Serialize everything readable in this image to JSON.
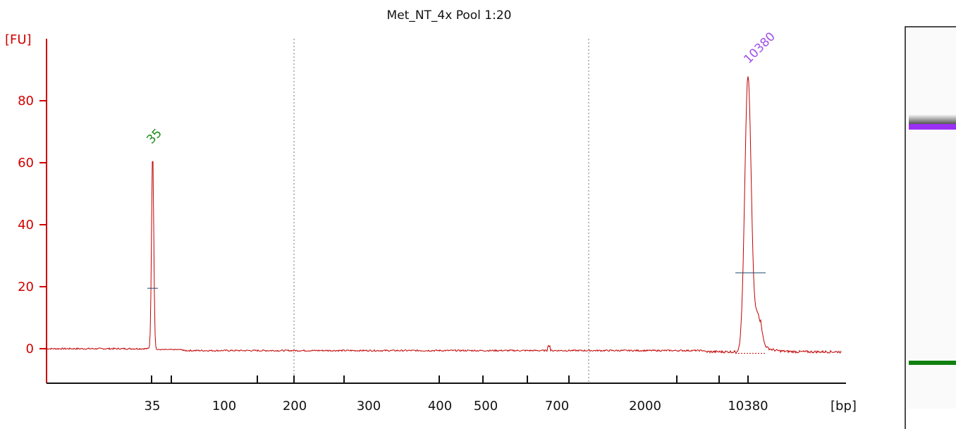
{
  "chart_data": {
    "type": "line",
    "title": "Met_NT_4x Pool 1:20",
    "y_unit": "[FU]",
    "x_unit": "[bp]",
    "ylim": [
      -11,
      100
    ],
    "y_ticks": [
      0,
      20,
      40,
      60,
      80
    ],
    "x_tick_labels": [
      "35",
      "100",
      "200",
      "300",
      "400",
      "500",
      "700",
      "2000",
      "10380"
    ],
    "peaks": [
      {
        "label": "35",
        "size_bp": 35,
        "height_fu": 64,
        "half_height_fu": 19.5
      },
      {
        "label": "10380",
        "size_bp": 10380,
        "height_fu": 89,
        "half_height_fu": 24.5
      }
    ],
    "grid": "dotted vertical lines at 200 and 2000 bp",
    "trace_color": "#c00000",
    "axis_color": "#d00000",
    "peak_label_colors": {
      "lower_marker": "#1a8a1a",
      "upper_marker": "#a050e6"
    }
  },
  "gel": {
    "bands": [
      {
        "label": "10380",
        "color": "#9b30f5"
      },
      {
        "label": "35",
        "color": "#108010"
      }
    ]
  }
}
